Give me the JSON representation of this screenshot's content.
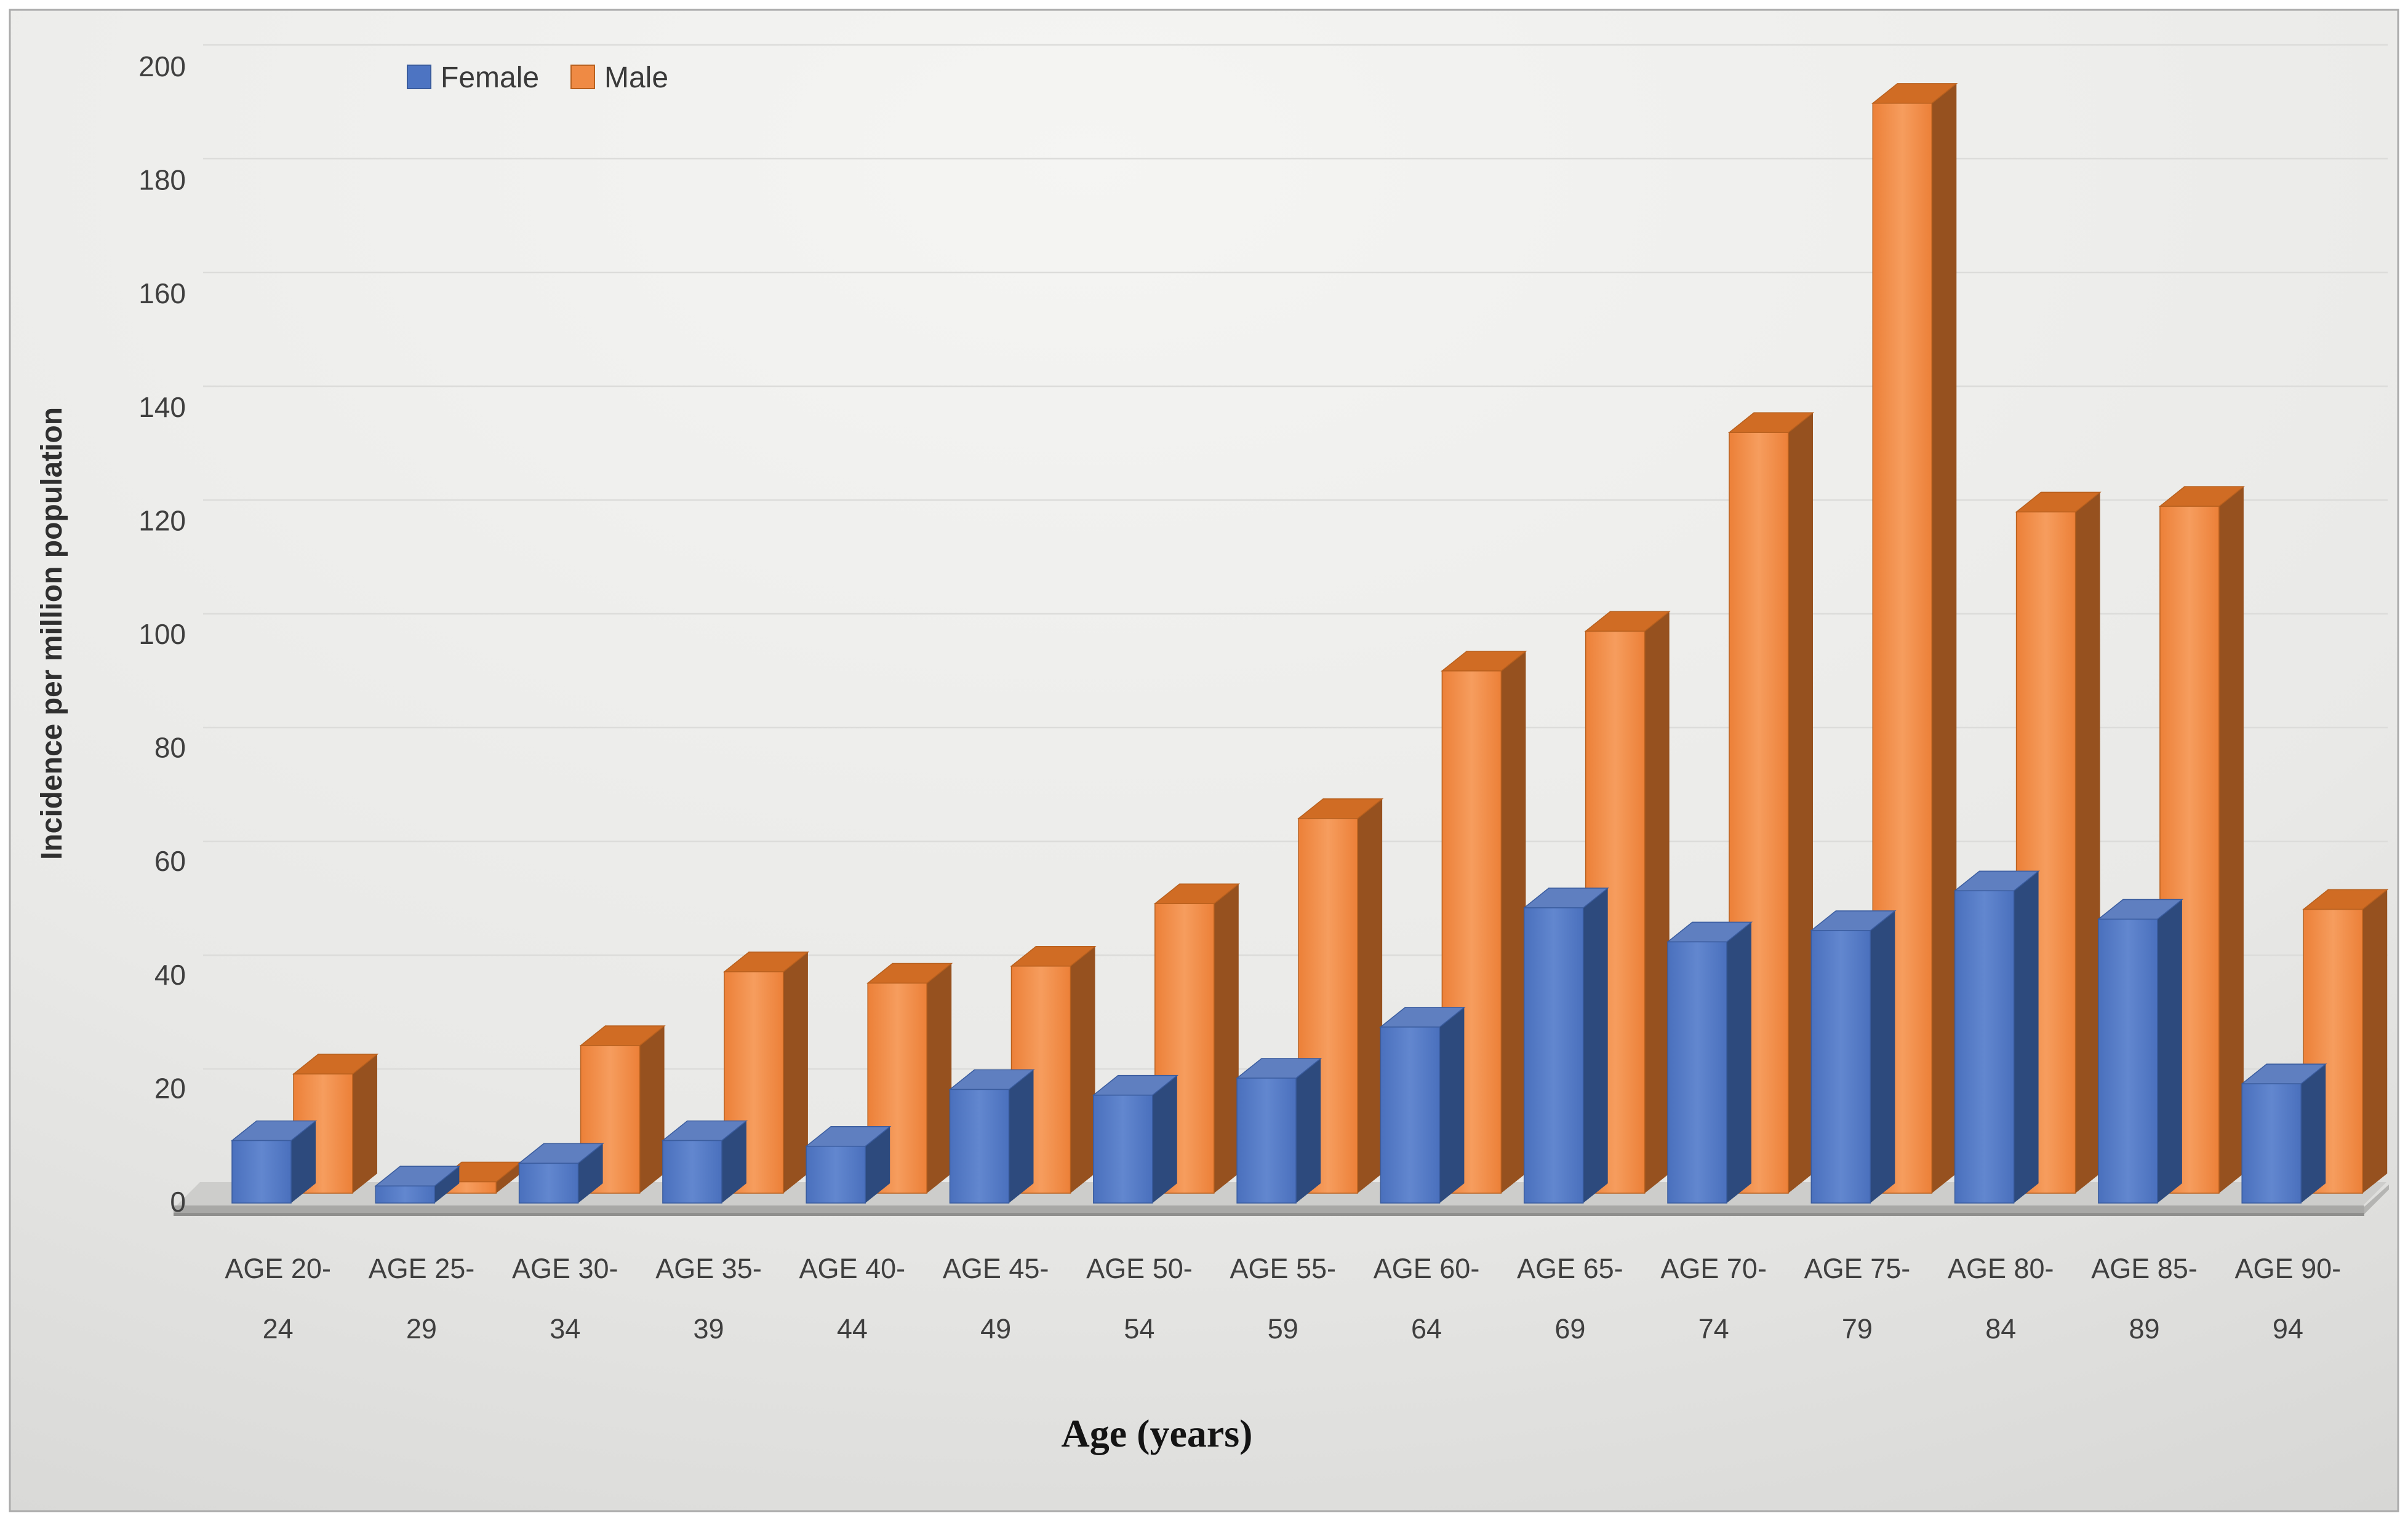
{
  "figure": {
    "frame_border_color": "#ababab",
    "background_center": "#f4f4f2",
    "background_edge": "#d0d0ce",
    "floor_color": "#cdcdcb",
    "floor_edge_color": "#9a9a98",
    "gridline_color": "#dcdcda",
    "tick_text_color": "#3f3f3f",
    "axis_title_color": "#1a1a1a"
  },
  "chart_data": {
    "type": "bar",
    "style": "3d-clustered-column",
    "title": "",
    "xlabel": "Age (years)",
    "ylabel": "Incidence per million population",
    "categories": [
      "AGE 20-24",
      "AGE 25-29",
      "AGE 30-34",
      "AGE 35-39",
      "AGE 40-44",
      "AGE 45-49",
      "AGE 50-54",
      "AGE 55-59",
      "AGE 60-64",
      "AGE 65-69",
      "AGE 70-74",
      "AGE 75-79",
      "AGE 80-84",
      "AGE 85-89",
      "AGE 90-94"
    ],
    "series": [
      {
        "name": "Female",
        "color": "#4d74c2",
        "color_top": "#5f7fc0",
        "color_side": "#2d4a7d",
        "color_stroke": "#3a5c9e",
        "values": [
          11,
          3,
          7,
          11,
          10,
          20,
          19,
          22,
          31,
          52,
          46,
          48,
          55,
          50,
          21
        ]
      },
      {
        "name": "Male",
        "color": "#ef8a44",
        "color_top": "#d06c24",
        "color_side": "#96511f",
        "color_stroke": "#b8601e",
        "values": [
          21,
          2,
          26,
          39,
          37,
          40,
          51,
          66,
          92,
          99,
          134,
          192,
          120,
          121,
          50
        ]
      }
    ],
    "ylim": [
      0,
      200
    ],
    "ytick_step": 20,
    "ytick_labels": [
      "0",
      "20",
      "40",
      "60",
      "80",
      "100",
      "120",
      "140",
      "160",
      "180",
      "200"
    ],
    "grid": true,
    "legend_position": "top-left-inside"
  }
}
